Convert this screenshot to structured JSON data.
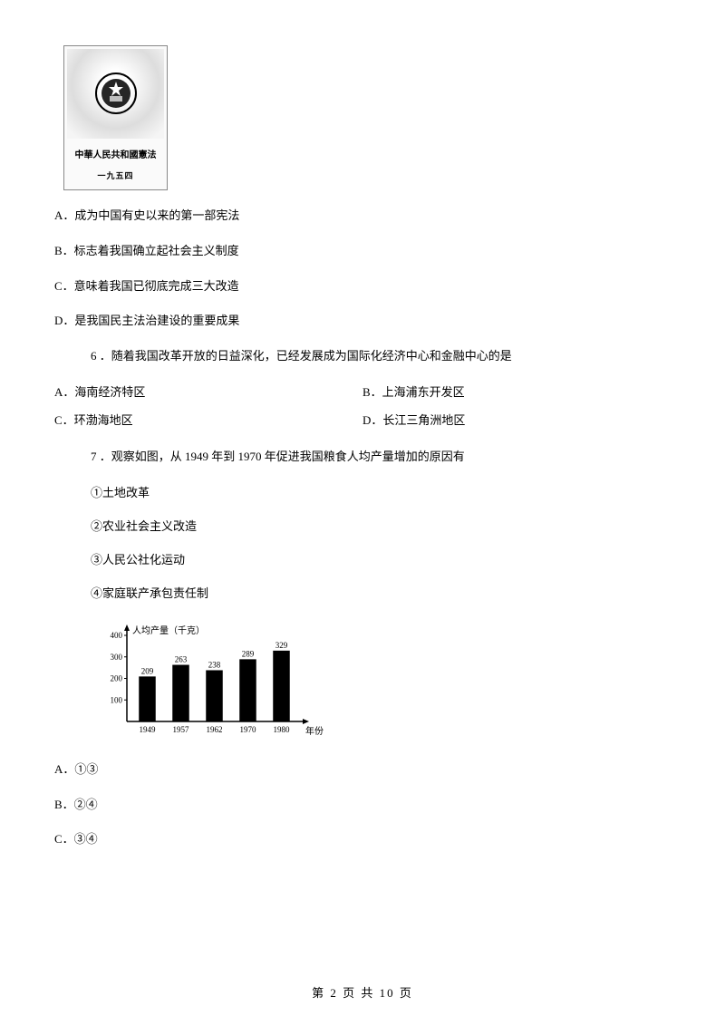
{
  "constitution_image": {
    "title": "中華人民共和國憲法",
    "year": "一九五四"
  },
  "q5_options": {
    "A": "A．成为中国有史以来的第一部宪法",
    "B": "B．标志着我国确立起社会主义制度",
    "C": "C．意味着我国已彻底完成三大改造",
    "D": "D．是我国民主法治建设的重要成果"
  },
  "q6": {
    "text": "6 ．随着我国改革开放的日益深化，已经发展成为国际化经济中心和金融中心的是",
    "options": {
      "A": "A．海南经济特区",
      "B": "B．上海浦东开发区",
      "C": "C．环渤海地区",
      "D": "D．长江三角洲地区"
    }
  },
  "q7": {
    "text": "7 ．观察如图，从 1949 年到 1970 年促进我国粮食人均产量增加的原因有",
    "items": {
      "i1": "①土地改革",
      "i2": "②农业社会主义改造",
      "i3": "③人民公社化运动",
      "i4": "④家庭联产承包责任制"
    },
    "options": {
      "A": "A．①③",
      "B": "B．②④",
      "C": "C．③④"
    }
  },
  "chart": {
    "ylabel": "人均产量（千克）",
    "xlabel": "年份",
    "yticks": [
      "400",
      "300",
      "200",
      "100"
    ],
    "categories": [
      "1949",
      "1957",
      "1962",
      "1970",
      "1980"
    ],
    "values": [
      209,
      263,
      238,
      289,
      329
    ],
    "bar_color": "#000000",
    "max_y": 400,
    "text_color": "#000000",
    "bg_color": "#ffffff"
  },
  "footer": "第 2 页 共 10 页"
}
